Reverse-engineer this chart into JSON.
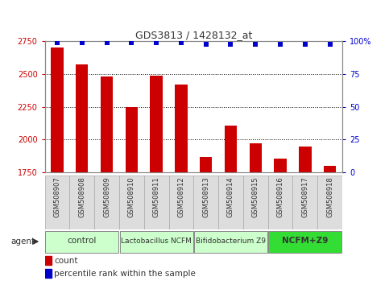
{
  "title": "GDS3813 / 1428132_at",
  "samples": [
    "GSM508907",
    "GSM508908",
    "GSM508909",
    "GSM508910",
    "GSM508911",
    "GSM508912",
    "GSM508913",
    "GSM508914",
    "GSM508915",
    "GSM508916",
    "GSM508917",
    "GSM508918"
  ],
  "counts": [
    2700,
    2575,
    2480,
    2250,
    2490,
    2420,
    1870,
    2105,
    1975,
    1855,
    1945,
    1800
  ],
  "percentiles": [
    98,
    98,
    98,
    98,
    98,
    98,
    97,
    97,
    97,
    97,
    97,
    97
  ],
  "bar_color": "#cc0000",
  "dot_color": "#0000cc",
  "ylim_left": [
    1750,
    2750
  ],
  "ylim_right": [
    0,
    100
  ],
  "yticks_left": [
    1750,
    2000,
    2250,
    2500,
    2750
  ],
  "yticks_right": [
    0,
    25,
    50,
    75,
    100
  ],
  "groups": [
    {
      "label": "control",
      "start": 0,
      "end": 3,
      "color": "#ccffcc",
      "fontsize": 7.5,
      "bold": false
    },
    {
      "label": "Lactobacillus NCFM",
      "start": 3,
      "end": 6,
      "color": "#ccffcc",
      "fontsize": 6.5,
      "bold": false
    },
    {
      "label": "Bifidobacterium Z9",
      "start": 6,
      "end": 9,
      "color": "#ccffcc",
      "fontsize": 6.5,
      "bold": false
    },
    {
      "label": "NCFM+Z9",
      "start": 9,
      "end": 12,
      "color": "#33dd33",
      "fontsize": 7.5,
      "bold": true
    }
  ],
  "agent_label": "agent",
  "legend_count_label": "count",
  "legend_pct_label": "percentile rank within the sample",
  "background_color": "#ffffff",
  "tick_bg_color": "#dddddd",
  "grid_color": "#000000",
  "tick_label_color_left": "#cc0000",
  "tick_label_color_right": "#0000cc"
}
